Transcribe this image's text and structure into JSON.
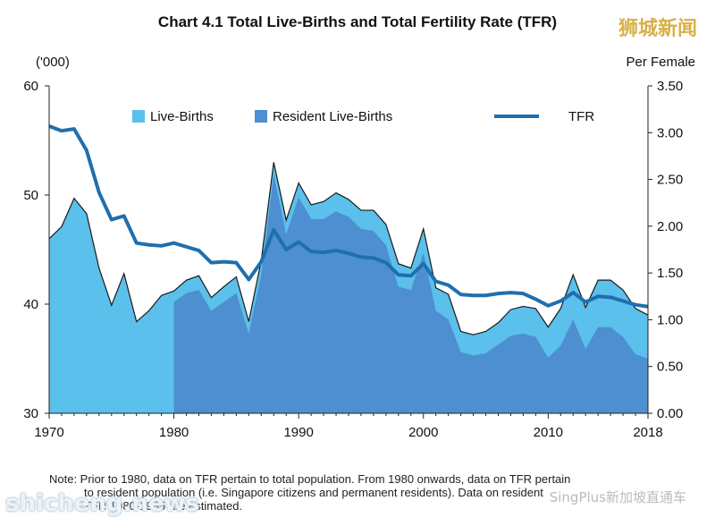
{
  "chart_data": {
    "type": "area",
    "title": "Chart 4.1  Total Live-Births and Total Fertility Rate (TFR)",
    "left_axis": {
      "unit_label": "('000)",
      "range": [
        30,
        60
      ],
      "ticks": [
        "30",
        "40",
        "50",
        "60"
      ]
    },
    "right_axis": {
      "unit_label": "Per Female",
      "range": [
        0,
        3.5
      ],
      "ticks": [
        "0.00",
        "0.50",
        "1.00",
        "1.50",
        "2.00",
        "2.50",
        "3.00",
        "3.50"
      ]
    },
    "x_ticks": [
      "1970",
      "1980",
      "1990",
      "2000",
      "2010",
      "2018"
    ],
    "legend_placement": "top",
    "x": [
      1970,
      1971,
      1972,
      1973,
      1974,
      1975,
      1976,
      1977,
      1978,
      1979,
      1980,
      1981,
      1982,
      1983,
      1984,
      1985,
      1986,
      1987,
      1988,
      1989,
      1990,
      1991,
      1992,
      1993,
      1994,
      1995,
      1996,
      1997,
      1998,
      1999,
      2000,
      2001,
      2002,
      2003,
      2004,
      2005,
      2006,
      2007,
      2008,
      2009,
      2010,
      2011,
      2012,
      2013,
      2014,
      2015,
      2016,
      2017,
      2018
    ],
    "series": [
      {
        "name": "Live-Births",
        "axis": "left",
        "color": "#5bc0eb",
        "values": [
          46.0,
          47.1,
          49.7,
          48.3,
          43.3,
          39.9,
          42.8,
          38.4,
          39.4,
          40.8,
          41.2,
          42.2,
          42.6,
          40.6,
          41.6,
          42.5,
          38.4,
          44.0,
          53.0,
          47.7,
          51.1,
          49.1,
          49.4,
          50.2,
          49.6,
          48.6,
          48.6,
          47.3,
          43.7,
          43.3,
          46.9,
          41.5,
          40.9,
          37.5,
          37.2,
          37.5,
          38.3,
          39.5,
          39.8,
          39.6,
          37.9,
          39.6,
          42.7,
          39.7,
          42.2,
          42.2,
          41.3,
          39.6,
          39.0
        ]
      },
      {
        "name": "Resident Live-Births",
        "axis": "left",
        "color": "#4d8fd0",
        "values": [
          null,
          null,
          null,
          null,
          null,
          null,
          null,
          null,
          null,
          null,
          40.2,
          41.0,
          41.3,
          39.4,
          40.2,
          41.0,
          37.3,
          42.7,
          51.9,
          46.4,
          49.8,
          47.8,
          47.8,
          48.5,
          48.0,
          46.9,
          46.7,
          45.4,
          41.6,
          41.3,
          44.7,
          39.4,
          38.6,
          35.6,
          35.3,
          35.5,
          36.3,
          37.1,
          37.3,
          37.0,
          35.1,
          36.2,
          38.6,
          35.9,
          37.9,
          37.9,
          37.0,
          35.4,
          35.0
        ]
      },
      {
        "name": "TFR",
        "axis": "right",
        "color": "#1f6fae",
        "values": [
          3.07,
          3.02,
          3.04,
          2.81,
          2.36,
          2.07,
          2.11,
          1.82,
          1.8,
          1.79,
          1.82,
          1.78,
          1.74,
          1.61,
          1.62,
          1.61,
          1.43,
          1.62,
          1.96,
          1.75,
          1.83,
          1.73,
          1.72,
          1.74,
          1.71,
          1.67,
          1.66,
          1.61,
          1.48,
          1.47,
          1.6,
          1.41,
          1.37,
          1.27,
          1.26,
          1.26,
          1.28,
          1.29,
          1.28,
          1.22,
          1.15,
          1.2,
          1.29,
          1.19,
          1.25,
          1.24,
          1.2,
          1.16,
          1.14
        ]
      }
    ]
  },
  "note": {
    "line1": "Note: Prior to 1980, data on TFR pertain to total population. From 1980 onwards, data on TFR pertain",
    "line2": "to resident population (i.e. Singapore citizens and permanent residents). Data on resident",
    "line3": "TFR 1980-1985 are estimated."
  },
  "watermarks": {
    "top_right": "狮城新闻",
    "bottom_left": "shicheng.news",
    "bottom_right": "SingPlus新加坡直通车"
  }
}
